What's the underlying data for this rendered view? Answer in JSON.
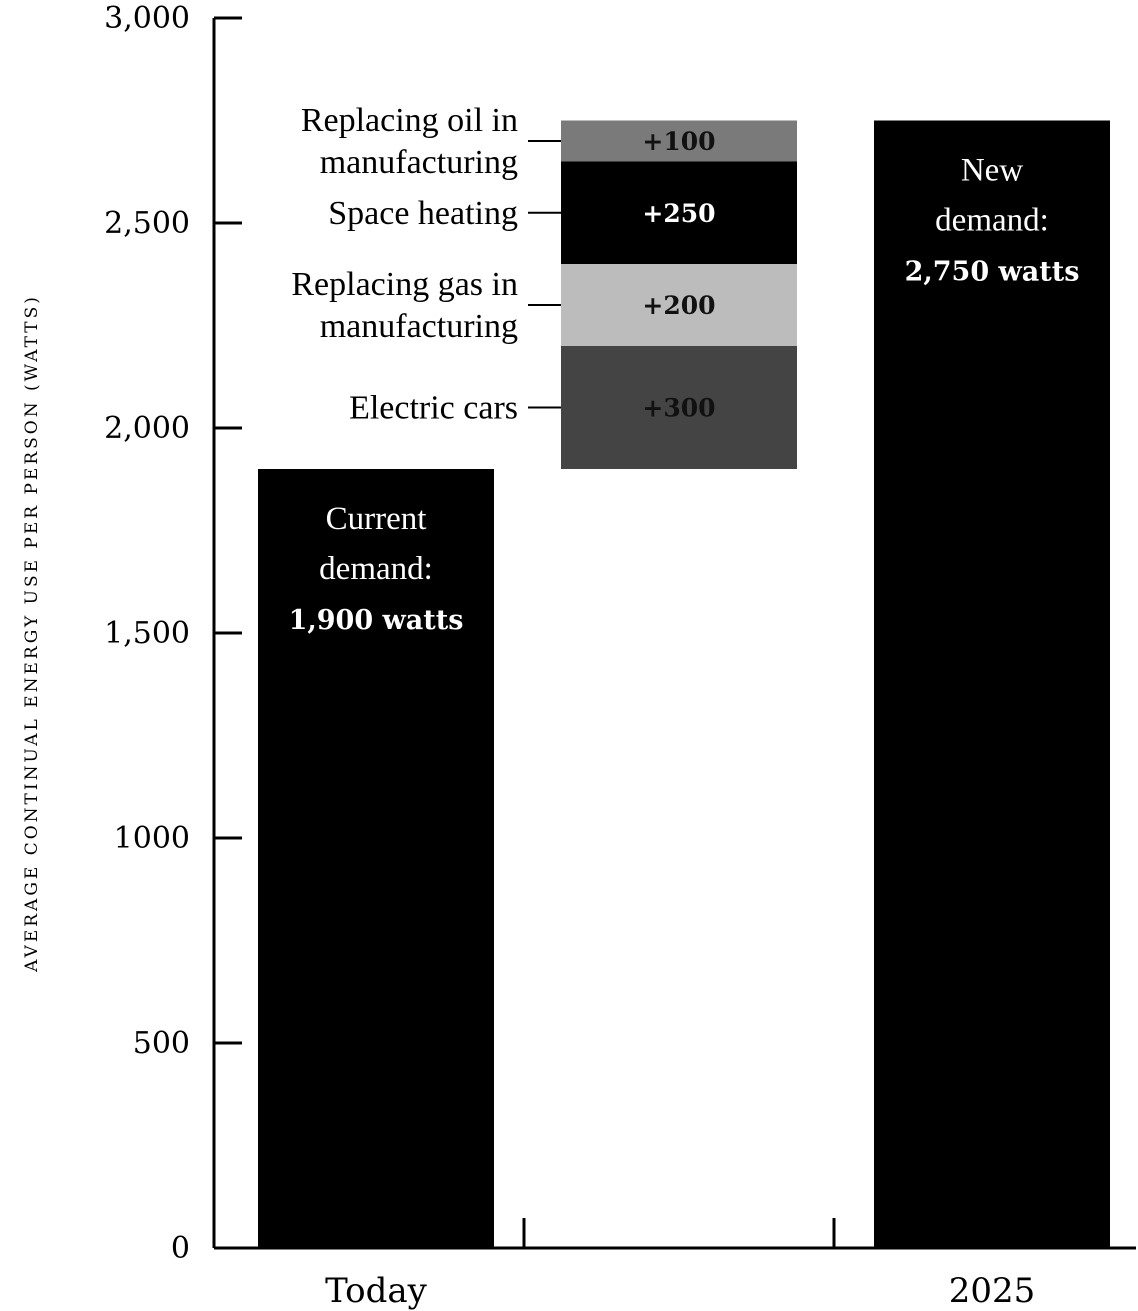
{
  "chart_data": {
    "type": "bar",
    "ylabel": "AVERAGE CONTINUAL ENERGY USE PER PERSON (WATTS)",
    "ylim": [
      0,
      3000
    ],
    "yticks": [
      {
        "value": 0,
        "label": "0"
      },
      {
        "value": 500,
        "label": "500"
      },
      {
        "value": 1000,
        "label": "1000"
      },
      {
        "value": 1500,
        "label": "1,500"
      },
      {
        "value": 2000,
        "label": "2,000"
      },
      {
        "value": 2500,
        "label": "2,500"
      },
      {
        "value": 3000,
        "label": "3,000"
      }
    ],
    "categories": [
      "Today",
      "2025"
    ],
    "bars": [
      {
        "category": "Today",
        "value": 1900,
        "color": "#000000",
        "annotation": [
          "Current",
          "demand:",
          "1,900 watts"
        ]
      },
      {
        "category": "2025",
        "value": 2750,
        "color": "#000000",
        "annotation": [
          "New",
          "demand:",
          "2,750 watts"
        ]
      }
    ],
    "increments": [
      {
        "label": [
          "Electric cars"
        ],
        "value": 300,
        "value_label": "+300",
        "color": "#444444",
        "text_color": "#111111"
      },
      {
        "label": [
          "Replacing gas in",
          "manufacturing"
        ],
        "value": 200,
        "value_label": "+200",
        "color": "#bcbcbc",
        "text_color": "#111111"
      },
      {
        "label": [
          "Space heating"
        ],
        "value": 250,
        "value_label": "+250",
        "color": "#000000",
        "text_color": "#ffffff"
      },
      {
        "label": [
          "Replacing oil in",
          "manufacturing"
        ],
        "value": 100,
        "value_label": "+100",
        "color": "#7a7a7a",
        "text_color": "#111111"
      }
    ],
    "grid": false
  }
}
